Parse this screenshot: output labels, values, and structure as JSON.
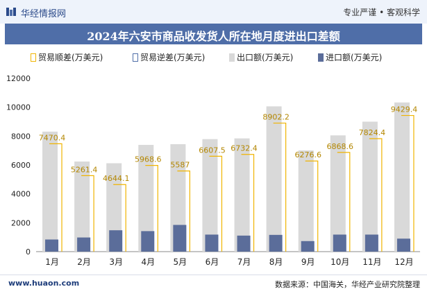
{
  "header": {
    "brand": "华经情报网",
    "tagline": "专业严谨 • 客观科学"
  },
  "footer": {
    "website": "www.huaon.com",
    "source": "数据来源：中国海关，华经产业研究院整理"
  },
  "colors": {
    "surplus": "#f0b400",
    "deficit": "#4f6ea8",
    "export": "#d9d9d9",
    "import": "#5b6d9a",
    "title_bg": "#4f6ea8"
  },
  "chart_data": {
    "type": "bar",
    "title": "2024年六安市商品收发货人所在地月度进出口差额",
    "categories": [
      "1月",
      "2月",
      "3月",
      "4月",
      "5月",
      "6月",
      "7月",
      "8月",
      "9月",
      "10月",
      "11月",
      "12月"
    ],
    "series": [
      {
        "name": "贸易顺差(万美元)",
        "values": [
          7470.4,
          5261.4,
          4644.1,
          5968.6,
          5587,
          6607.5,
          6732.4,
          8902.2,
          6276.6,
          6868.6,
          7824.4,
          9429.4
        ]
      },
      {
        "name": "贸易逆差(万美元)",
        "values": [
          0,
          0,
          0,
          0,
          0,
          0,
          0,
          0,
          0,
          0,
          0,
          0
        ]
      },
      {
        "name": "出口额(万美元)",
        "values": [
          8310,
          6240,
          6120,
          7390,
          7440,
          7790,
          7840,
          10060,
          7010,
          8050,
          9000,
          10330
        ]
      },
      {
        "name": "进口额(万美元)",
        "values": [
          840,
          980,
          1480,
          1420,
          1850,
          1180,
          1110,
          1160,
          730,
          1180,
          1180,
          900
        ]
      }
    ],
    "data_labels": [
      "7470.4",
      "5261.4",
      "4644.1",
      "5968.6",
      "5587",
      "6607.5",
      "6732.4",
      "8902.2",
      "6276.6",
      "6868.6",
      "7824.4",
      "9429.4"
    ],
    "yticks": [
      "0",
      "2000",
      "4000",
      "6000",
      "8000",
      "10000",
      "12000"
    ],
    "ylim": [
      0,
      12000
    ],
    "grid": false,
    "legend": "top"
  }
}
